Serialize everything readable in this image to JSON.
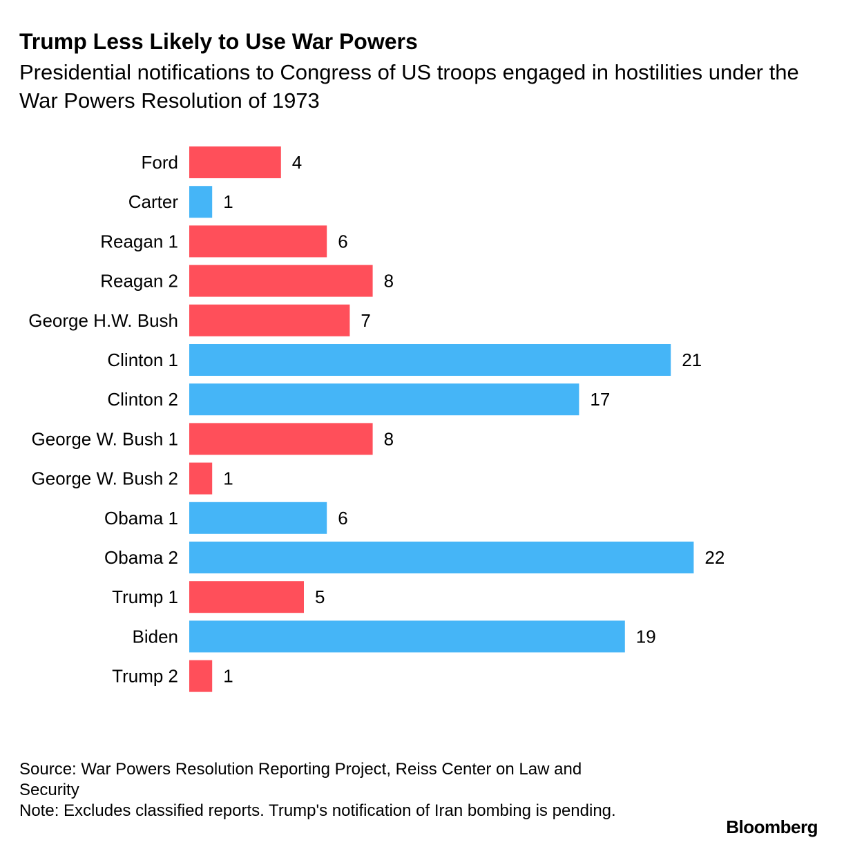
{
  "title": "Trump Less Likely to Use War Powers",
  "subtitle": "Presidential notifications to Congress of US troops engaged in hostilities under the War Powers Resolution of 1973",
  "footer": {
    "source": "Source: War Powers Resolution Reporting Project, Reiss Center on Law and Security",
    "note": "Note: Excludes classified reports. Trump's notification of Iran bombing is pending."
  },
  "brand": "Bloomberg",
  "colors": {
    "republican": "#ff4f5a",
    "democrat": "#45b5f7"
  },
  "chart_data": {
    "type": "bar",
    "orientation": "horizontal",
    "categories": [
      "Ford",
      "Carter",
      "Reagan 1",
      "Reagan 2",
      "George H.W. Bush",
      "Clinton 1",
      "Clinton 2",
      "George W. Bush 1",
      "George W. Bush 2",
      "Obama 1",
      "Obama 2",
      "Trump 1",
      "Biden",
      "Trump 2"
    ],
    "values": [
      4,
      1,
      6,
      8,
      7,
      21,
      17,
      8,
      1,
      6,
      22,
      5,
      19,
      1
    ],
    "bar_colors": [
      "#ff4f5a",
      "#45b5f7",
      "#ff4f5a",
      "#ff4f5a",
      "#ff4f5a",
      "#45b5f7",
      "#45b5f7",
      "#ff4f5a",
      "#ff4f5a",
      "#45b5f7",
      "#45b5f7",
      "#ff4f5a",
      "#45b5f7",
      "#ff4f5a"
    ],
    "data_labels": true,
    "xlim": [
      0,
      22
    ],
    "grid": false,
    "legend": "none"
  }
}
